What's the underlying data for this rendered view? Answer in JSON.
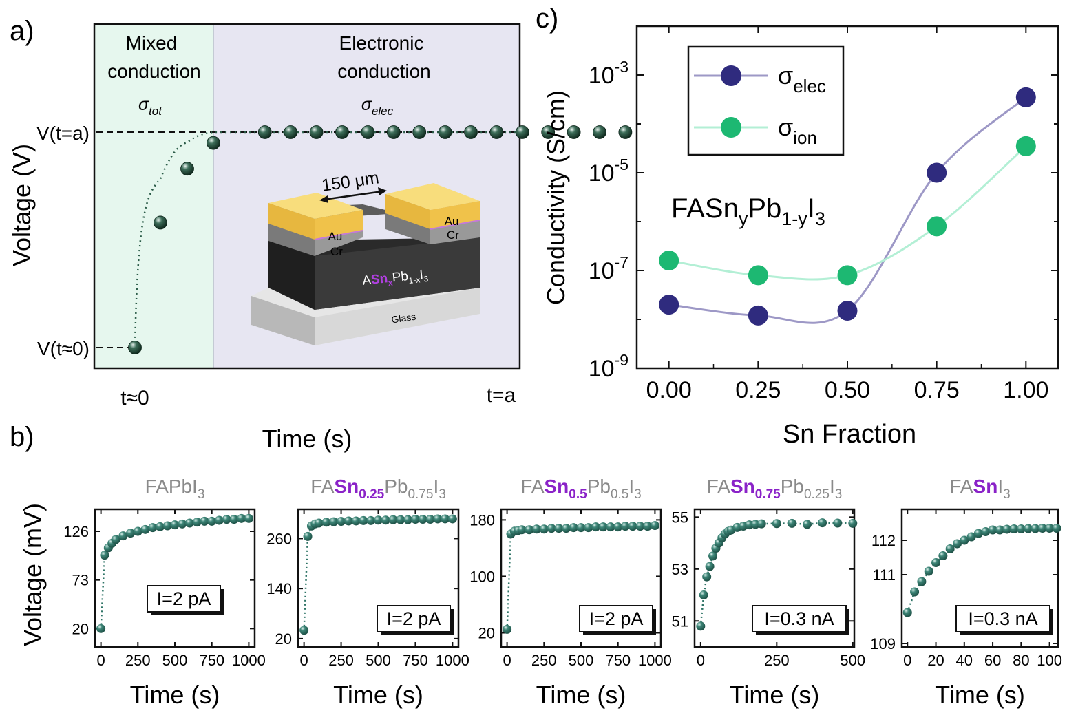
{
  "colors": {
    "mixed_bg": "#e6f7ee",
    "electronic_bg": "#e7e6f2",
    "dot_dark": "#173a2c",
    "dot_small": "#2e7466",
    "elec": "#2f2b7e",
    "elec_line": "#9d98c6",
    "ion": "#1db872",
    "ion_line": "#b3efd5",
    "sn_purple": "#8a22c8",
    "grey_label": "#8a8a8a",
    "gold": "#f0c24a",
    "gold_top": "#f8dd7c",
    "cr": "#909090",
    "film": "#3a3a3a",
    "glass": "#e0e0e0"
  },
  "panel_a": {
    "label": "a)",
    "ylabel": "Voltage (V)",
    "xlabel": "Time (s)",
    "ytick_top": "V(t=a)",
    "ytick_bottom": "V(t≈0)",
    "xtick_left": "t≈0",
    "xtick_right": "t=a",
    "region_mixed_line1": "Mixed",
    "region_mixed_line2": "conduction",
    "region_mixed_sigma": "σ",
    "region_mixed_sub": "tot",
    "region_elec_line1": "Electronic",
    "region_elec_line2": "conduction",
    "region_elec_sigma": "σ",
    "region_elec_sub": "elec",
    "device": {
      "gap": "150 μm",
      "au": "Au",
      "cr": "Cr",
      "film_a": "A",
      "film_sn": "Sn",
      "film_x": "x",
      "film_pb": "Pb",
      "film_1x": "1-x",
      "film_i": "I",
      "film_3": "3",
      "glass": "Glass"
    }
  },
  "panel_b": {
    "label": "b)",
    "ylabel": "Voltage (mV)",
    "xlabel": "Time (s)",
    "plots": [
      {
        "t_pre": "FAPbI",
        "t_sn": "",
        "t_snsub": "",
        "t_pb": "",
        "t_pbsub": "",
        "t_post": "3",
        "current": "I=2 pA",
        "xticks": [
          "0",
          "250",
          "500",
          "750",
          "1000"
        ],
        "yticks": [
          "20",
          "73",
          "126"
        ],
        "xlim": [
          -40,
          1040
        ],
        "ylim": [
          0,
          150
        ]
      },
      {
        "t_pre": "FA",
        "t_sn": "Sn",
        "t_snsub": "0.25",
        "t_pb": "Pb",
        "t_pbsub": "0.75",
        "t_post": "I3",
        "current": "I=2 pA",
        "xticks": [
          "0",
          "250",
          "500",
          "750",
          "1000"
        ],
        "yticks": [
          "20",
          "140",
          "260"
        ],
        "xlim": [
          -40,
          1040
        ],
        "ylim": [
          0,
          330
        ]
      },
      {
        "t_pre": "FA",
        "t_sn": "Sn",
        "t_snsub": "0.5",
        "t_pb": "Pb",
        "t_pbsub": "0.5",
        "t_post": "I3",
        "current": "I=2 pA",
        "xticks": [
          "0",
          "250",
          "500",
          "750",
          "1000"
        ],
        "yticks": [
          "20",
          "100",
          "180"
        ],
        "xlim": [
          -40,
          1040
        ],
        "ylim": [
          0,
          195
        ]
      },
      {
        "t_pre": "FA",
        "t_sn": "Sn",
        "t_snsub": "0.75",
        "t_pb": "Pb",
        "t_pbsub": "0.25",
        "t_post": "I3",
        "current": "I=0.3 nA",
        "xticks": [
          "0",
          "250",
          "500"
        ],
        "yticks": [
          "51",
          "53",
          "55"
        ],
        "xlim": [
          -20,
          505
        ],
        "ylim": [
          50,
          55.3
        ]
      },
      {
        "t_pre": "FA",
        "t_sn": "Sn",
        "t_snsub": "",
        "t_pb": "",
        "t_pbsub": "",
        "t_post": "I3",
        "current": "I=0.3 nA",
        "xticks": [
          "0",
          "20",
          "40",
          "60",
          "80",
          "100"
        ],
        "yticks": [
          "109",
          "111",
          "112"
        ],
        "xlim": [
          -4,
          106
        ],
        "ylim": [
          108.9,
          112.9
        ]
      }
    ]
  },
  "panel_c": {
    "label": "c)",
    "ylabel": "Conductivity (S/cm)",
    "xlabel": "Sn Fraction",
    "compound": {
      "pre": "FASn",
      "y": "y",
      "mid": "Pb",
      "sub": "1-y",
      "i": "I",
      "three": "3"
    },
    "legend": [
      {
        "sigma": "σ",
        "sub": "elec"
      },
      {
        "sigma": "σ",
        "sub": "ion"
      }
    ],
    "xticks": [
      "0.00",
      "0.25",
      "0.50",
      "0.75",
      "1.00"
    ],
    "yticks": [
      {
        "base": "10",
        "exp": "-3"
      },
      {
        "base": "10",
        "exp": "-5"
      },
      {
        "base": "10",
        "exp": "-7"
      },
      {
        "base": "10",
        "exp": "-9"
      }
    ]
  },
  "chart_data": [
    {
      "type": "scatter",
      "title": "",
      "xlabel": "Time (s)",
      "ylabel": "Voltage (V)",
      "series": [
        {
          "x": [
            0.1,
            0.2,
            0.3,
            0.4,
            0.5,
            1,
            2,
            3,
            4,
            5,
            6,
            7,
            8,
            9,
            10,
            11,
            12,
            13,
            14,
            15
          ],
          "y": [
            0.0,
            0.58,
            0.83,
            0.95,
            0.985,
            1,
            1,
            1,
            1,
            1,
            1,
            1,
            1,
            1,
            1,
            1,
            1,
            1,
            1,
            1
          ]
        }
      ],
      "note_yticks": [
        "V(t≈0)",
        "V(t=a)"
      ],
      "note_xticks": [
        "t≈0",
        "t=a"
      ]
    },
    {
      "type": "scatter",
      "ylabel": "Voltage (mV)",
      "xlabel": "Time (s)",
      "xlim": [
        -40,
        1040
      ],
      "ylim": [
        0,
        150
      ],
      "series": [
        {
          "x": [
            0,
            25,
            50,
            75,
            100,
            150,
            200,
            250,
            300,
            350,
            400,
            450,
            500,
            550,
            600,
            650,
            700,
            750,
            800,
            850,
            900,
            950,
            1000
          ],
          "y": [
            20,
            100,
            108,
            113,
            117,
            121,
            124,
            126,
            128,
            130,
            131,
            132,
            133,
            134,
            135,
            136,
            137,
            137,
            138,
            139,
            139,
            140,
            140
          ]
        }
      ]
    },
    {
      "type": "scatter",
      "ylabel": "Voltage (mV)",
      "xlabel": "Time (s)",
      "xlim": [
        -40,
        1040
      ],
      "ylim": [
        0,
        330
      ],
      "series": [
        {
          "x": [
            0,
            25,
            50,
            75,
            100,
            150,
            200,
            250,
            300,
            350,
            400,
            450,
            500,
            550,
            600,
            650,
            700,
            750,
            800,
            850,
            900,
            950,
            1000
          ],
          "y": [
            40,
            265,
            290,
            295,
            297,
            299,
            300,
            301,
            302,
            302,
            303,
            303,
            304,
            304,
            305,
            305,
            305,
            306,
            306,
            306,
            307,
            307,
            307
          ]
        }
      ]
    },
    {
      "type": "scatter",
      "ylabel": "Voltage (mV)",
      "xlabel": "Time (s)",
      "xlim": [
        -40,
        1040
      ],
      "ylim": [
        0,
        195
      ],
      "series": [
        {
          "x": [
            0,
            25,
            50,
            75,
            100,
            150,
            200,
            250,
            300,
            350,
            400,
            450,
            500,
            550,
            600,
            650,
            700,
            750,
            800,
            850,
            900,
            950,
            1000
          ],
          "y": [
            25,
            160,
            164,
            165,
            166,
            166,
            167,
            167,
            168,
            168,
            168,
            169,
            169,
            169,
            170,
            170,
            170,
            170,
            171,
            171,
            171,
            171,
            172
          ]
        }
      ]
    },
    {
      "type": "scatter",
      "ylabel": "Voltage (mV)",
      "xlabel": "Time (s)",
      "xlim": [
        -20,
        505
      ],
      "ylim": [
        50,
        55.3
      ],
      "series": [
        {
          "x": [
            0,
            10,
            20,
            30,
            40,
            50,
            60,
            70,
            80,
            90,
            100,
            120,
            140,
            160,
            180,
            200,
            250,
            300,
            350,
            400,
            450,
            500
          ],
          "y": [
            50.8,
            52.0,
            52.7,
            53.1,
            53.5,
            53.8,
            54.0,
            54.2,
            54.35,
            54.45,
            54.5,
            54.6,
            54.65,
            54.7,
            54.72,
            54.74,
            54.75,
            54.76,
            54.72,
            54.78,
            54.77,
            54.76
          ]
        }
      ]
    },
    {
      "type": "scatter",
      "ylabel": "Voltage (mV)",
      "xlabel": "Time (s)",
      "xlim": [
        -4,
        106
      ],
      "ylim": [
        108.9,
        112.9
      ],
      "series": [
        {
          "x": [
            0,
            5,
            10,
            15,
            20,
            25,
            30,
            35,
            40,
            45,
            50,
            55,
            60,
            65,
            70,
            75,
            80,
            85,
            90,
            95,
            100,
            105
          ],
          "y": [
            109.9,
            110.5,
            110.8,
            111.1,
            111.35,
            111.55,
            111.75,
            111.9,
            112.0,
            112.1,
            112.2,
            112.25,
            112.3,
            112.3,
            112.32,
            112.33,
            112.33,
            112.34,
            112.34,
            112.35,
            112.35,
            112.35
          ]
        }
      ]
    },
    {
      "type": "scatter",
      "xlabel": "Sn Fraction",
      "ylabel": "Conductivity (S/cm)",
      "yscale": "log",
      "ylim": [
        1e-09,
        0.01
      ],
      "xlim": [
        -0.09,
        1.09
      ],
      "categories": [
        0.0,
        0.25,
        0.5,
        0.75,
        1.0
      ],
      "series": [
        {
          "name": "σelec",
          "values": [
            2e-08,
            1.2e-08,
            1.5e-08,
            1e-05,
            0.00035
          ]
        },
        {
          "name": "σion",
          "values": [
            1.6e-07,
            8e-08,
            8e-08,
            8e-07,
            3.5e-05
          ]
        }
      ],
      "legend_position": "top-left"
    }
  ]
}
